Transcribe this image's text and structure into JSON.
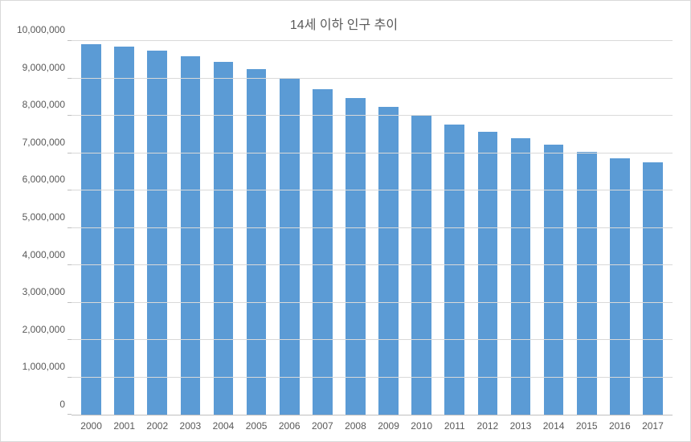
{
  "chart": {
    "type": "bar",
    "title": "14세 이하 인구 추이",
    "title_fontsize": 16,
    "title_color": "#595959",
    "background_color": "#ffffff",
    "border_color": "#d9d9d9",
    "grid_color": "#d9d9d9",
    "axis_line_color": "#bfbfbf",
    "axis_label_color": "#595959",
    "axis_label_fontsize": 12,
    "bar_color": "#5b9bd5",
    "bar_width_ratio": 0.6,
    "ylim": [
      0,
      10000000
    ],
    "ytick_step": 1000000,
    "yticks": [
      {
        "v": 0,
        "label": "0"
      },
      {
        "v": 1000000,
        "label": "1,000,000"
      },
      {
        "v": 2000000,
        "label": "2,000,000"
      },
      {
        "v": 3000000,
        "label": "3,000,000"
      },
      {
        "v": 4000000,
        "label": "4,000,000"
      },
      {
        "v": 5000000,
        "label": "5,000,000"
      },
      {
        "v": 6000000,
        "label": "6,000,000"
      },
      {
        "v": 7000000,
        "label": "7,000,000"
      },
      {
        "v": 8000000,
        "label": "8,000,000"
      },
      {
        "v": 9000000,
        "label": "9,000,000"
      },
      {
        "v": 10000000,
        "label": "10,000,000"
      }
    ],
    "categories": [
      "2000",
      "2001",
      "2002",
      "2003",
      "2004",
      "2005",
      "2006",
      "2007",
      "2008",
      "2009",
      "2010",
      "2011",
      "2012",
      "2013",
      "2014",
      "2015",
      "2016",
      "2017"
    ],
    "values": [
      9920000,
      9850000,
      9750000,
      9600000,
      9440000,
      9240000,
      8990000,
      8720000,
      8480000,
      8240000,
      7990000,
      7770000,
      7570000,
      7400000,
      7220000,
      7040000,
      6870000,
      6750000
    ]
  }
}
